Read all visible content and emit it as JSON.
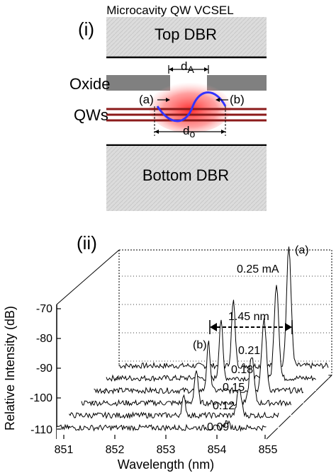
{
  "panel_i": {
    "label": "(i)",
    "title": "Microcavity QW VCSEL",
    "top_dbr": "Top DBR",
    "bottom_dbr": "Bottom DBR",
    "oxide": "Oxide",
    "qws": "QWs",
    "d_a_main": "d",
    "d_a_sub": "A",
    "d_o_main": "d",
    "d_o_sub": "o",
    "mode_a": "(a)",
    "mode_b": "(b)",
    "colors": {
      "dbr_fill": "#d9d9d9",
      "oxide_fill": "#808080",
      "qw_line": "#8b1a1a",
      "mode_curve": "#3333ff",
      "glow": "#ff3030"
    }
  },
  "panel_ii": {
    "label": "(ii)",
    "spacing_label": "1.45 nm",
    "peak_a": "(a)",
    "peak_b": "(b)",
    "chart_data": {
      "type": "line",
      "xlabel": "Wavelength (nm)",
      "ylabel": "Relative Intensity (dB)",
      "x_ticks": [
        "851",
        "852",
        "853",
        "854",
        "855"
      ],
      "y_ticks": [
        "-70",
        "-80",
        "-90",
        "-100",
        "-110"
      ],
      "xlim": [
        851,
        855
      ],
      "ylim": [
        -110,
        -70
      ],
      "series": [
        {
          "name": "0.09",
          "peak_a_nm": 854.5,
          "peak_a_db": -110,
          "peak_b_db": -112
        },
        {
          "name": "0.12",
          "peak_a_nm": 854.5,
          "peak_a_db": -103,
          "peak_b_db": -106
        },
        {
          "name": "0.15",
          "peak_a_nm": 854.5,
          "peak_a_db": -96,
          "peak_b_db": -101
        },
        {
          "name": "0.18",
          "peak_a_nm": 854.5,
          "peak_a_db": -88,
          "peak_b_db": -96
        },
        {
          "name": "0.21",
          "peak_a_nm": 854.5,
          "peak_a_db": -80,
          "peak_b_db": -92
        },
        {
          "name": "0.25 mA",
          "peak_a_nm": 854.5,
          "peak_a_db": -72,
          "peak_b_db": -90
        }
      ]
    }
  }
}
